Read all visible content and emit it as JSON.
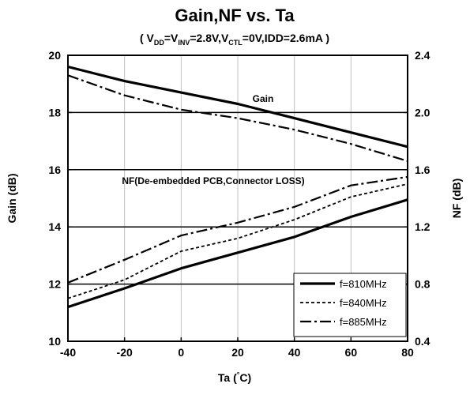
{
  "chart_data": {
    "type": "line",
    "title": "Gain,NF vs. Ta",
    "subtitle": "( V_DD=V_INV=2.8V,V_CTL=0V,IDD=2.6mA )",
    "subtitle_parts": {
      "open": "( V",
      "dd_sub": "DD",
      "mid1": "=V",
      "inv_sub": "INV",
      "mid2": "=2.8V,V",
      "ctl_sub": "CTL",
      "close": "=0V,IDD=2.6mA )"
    },
    "xlabel": "Ta (°C)",
    "xlabel_parts": {
      "prefix": "Ta (",
      "degree": "°",
      "suffix": "C)"
    },
    "ylabel_left": "Gain (dB)",
    "ylabel_right": "NF (dB)",
    "xlim": [
      -40,
      80
    ],
    "ylim_left": [
      10,
      20
    ],
    "ylim_right": [
      0.4,
      2.4
    ],
    "x_ticks": [
      -40,
      -20,
      0,
      20,
      40,
      60,
      80
    ],
    "x_tick_labels": [
      "-40",
      "-20",
      "0",
      "20",
      "40",
      "60",
      "80"
    ],
    "y_left_ticks": [
      10,
      12,
      14,
      16,
      18,
      20
    ],
    "y_left_tick_labels": [
      "10",
      "12",
      "14",
      "16",
      "18",
      "20"
    ],
    "y_right_ticks": [
      0.4,
      0.8,
      1.2,
      1.6,
      2.0,
      2.4
    ],
    "y_right_tick_labels": [
      "0.4",
      "0.8",
      "1.2",
      "1.6",
      "2.0",
      "2.4"
    ],
    "grid": true,
    "legend_position": "bottom-right",
    "annotations": {
      "gain": "Gain",
      "nf": "NF(De-embedded PCB,Connector LOSS)"
    },
    "series": [
      {
        "name": "f=810MHz",
        "style": "solid",
        "gain": {
          "x": [
            -40,
            -20,
            0,
            20,
            40,
            60,
            80
          ],
          "y": [
            19.6,
            19.1,
            18.7,
            18.3,
            17.8,
            17.3,
            16.8
          ]
        },
        "nf": {
          "x": [
            -40,
            -20,
            0,
            20,
            40,
            60,
            80
          ],
          "y": [
            0.64,
            0.77,
            0.91,
            1.02,
            1.13,
            1.27,
            1.39
          ]
        }
      },
      {
        "name": "f=840MHz",
        "style": "dotted",
        "gain": {
          "x": [
            -40,
            -20,
            0,
            20,
            40,
            60,
            80
          ],
          "y": [
            19.6,
            19.1,
            18.7,
            18.3,
            17.8,
            17.3,
            16.8
          ]
        },
        "nf": {
          "x": [
            -40,
            -20,
            0,
            20,
            40,
            60,
            80
          ],
          "y": [
            0.7,
            0.83,
            1.03,
            1.12,
            1.25,
            1.41,
            1.5
          ]
        }
      },
      {
        "name": "f=885MHz",
        "style": "dashdot",
        "gain": {
          "x": [
            -40,
            -20,
            0,
            20,
            40,
            60,
            80
          ],
          "y": [
            19.3,
            18.6,
            18.1,
            17.8,
            17.4,
            16.9,
            16.3
          ]
        },
        "nf": {
          "x": [
            -40,
            -20,
            0,
            20,
            40,
            60,
            80
          ],
          "y": [
            0.81,
            0.97,
            1.14,
            1.23,
            1.34,
            1.49,
            1.55
          ]
        }
      }
    ],
    "colors": {
      "line": "#000000",
      "grid_vertical": "#c0c0c0",
      "grid_horizontal": "#000000"
    }
  }
}
